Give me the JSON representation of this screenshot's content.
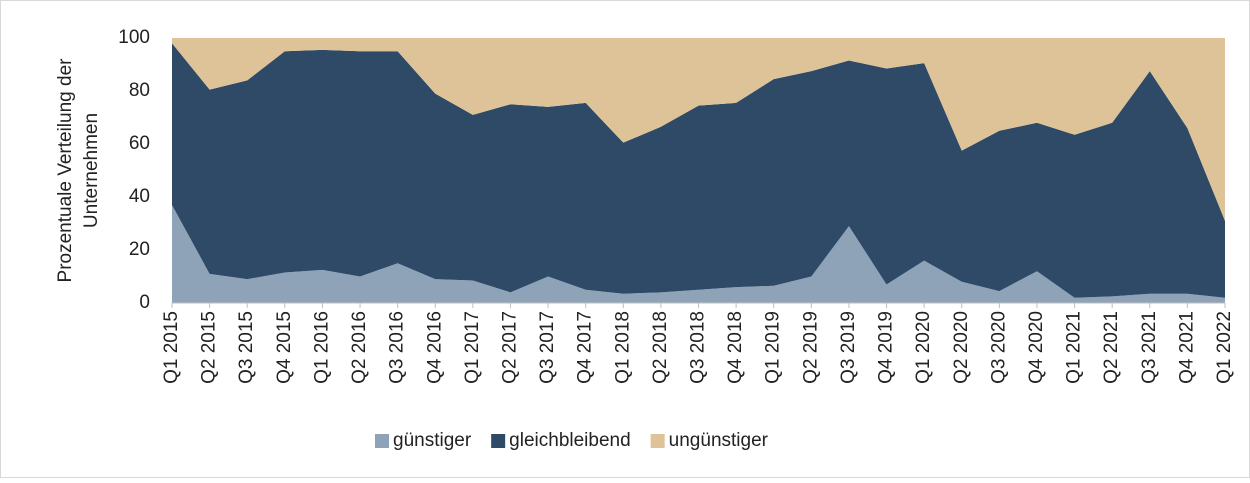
{
  "chart_data": {
    "type": "stacked_area",
    "ylabel": [
      "Prozentuale Verteilung der",
      "Unternehmen"
    ],
    "categories": [
      "Q1 2015",
      "Q2 2015",
      "Q3 2015",
      "Q4 2015",
      "Q1 2016",
      "Q2 2016",
      "Q3 2016",
      "Q4 2016",
      "Q1 2017",
      "Q2 2017",
      "Q3 2017",
      "Q4 2017",
      "Q1 2018",
      "Q2 2018",
      "Q3 2018",
      "Q4 2018",
      "Q1 2019",
      "Q2 2019",
      "Q3 2019",
      "Q4 2019",
      "Q1 2020",
      "Q2 2020",
      "Q3 2020",
      "Q4 2020",
      "Q1 2021",
      "Q2 2021",
      "Q3 2021",
      "Q4 2021",
      "Q1 2022"
    ],
    "series": [
      {
        "name": "günstiger",
        "color": "#8fa3b8",
        "values": [
          37,
          11,
          9,
          11.5,
          12.5,
          10,
          15,
          9,
          8.5,
          4,
          10,
          5,
          3.5,
          4,
          5,
          6,
          6.5,
          10,
          29,
          7,
          16,
          8,
          4.5,
          12,
          2,
          2.5,
          3.5,
          3.5,
          2
        ]
      },
      {
        "name": "gleichbleibend",
        "color": "#2e4a66",
        "values": [
          61,
          69.5,
          75,
          83.5,
          83,
          85,
          80,
          70,
          62.5,
          71,
          64,
          70.5,
          57,
          62.5,
          69.5,
          69.5,
          78,
          77.5,
          62.5,
          81.5,
          74.5,
          49.5,
          60.5,
          56,
          61.5,
          65.5,
          84,
          62.5,
          29
        ]
      },
      {
        "name": "ungünstiger",
        "color": "#dfc398",
        "values": [
          2,
          19.5,
          16,
          5,
          4.5,
          5,
          5,
          21,
          29,
          25,
          26,
          24.5,
          39.5,
          33.5,
          25.5,
          24.5,
          15.5,
          12.5,
          8.5,
          11.5,
          9.5,
          42.5,
          35,
          32,
          36.5,
          32,
          12.5,
          34,
          69
        ]
      }
    ],
    "ylim": [
      0,
      100
    ],
    "yticks": [
      0,
      20,
      40,
      60,
      80,
      100
    ],
    "grid": false,
    "legend": "bottom"
  }
}
